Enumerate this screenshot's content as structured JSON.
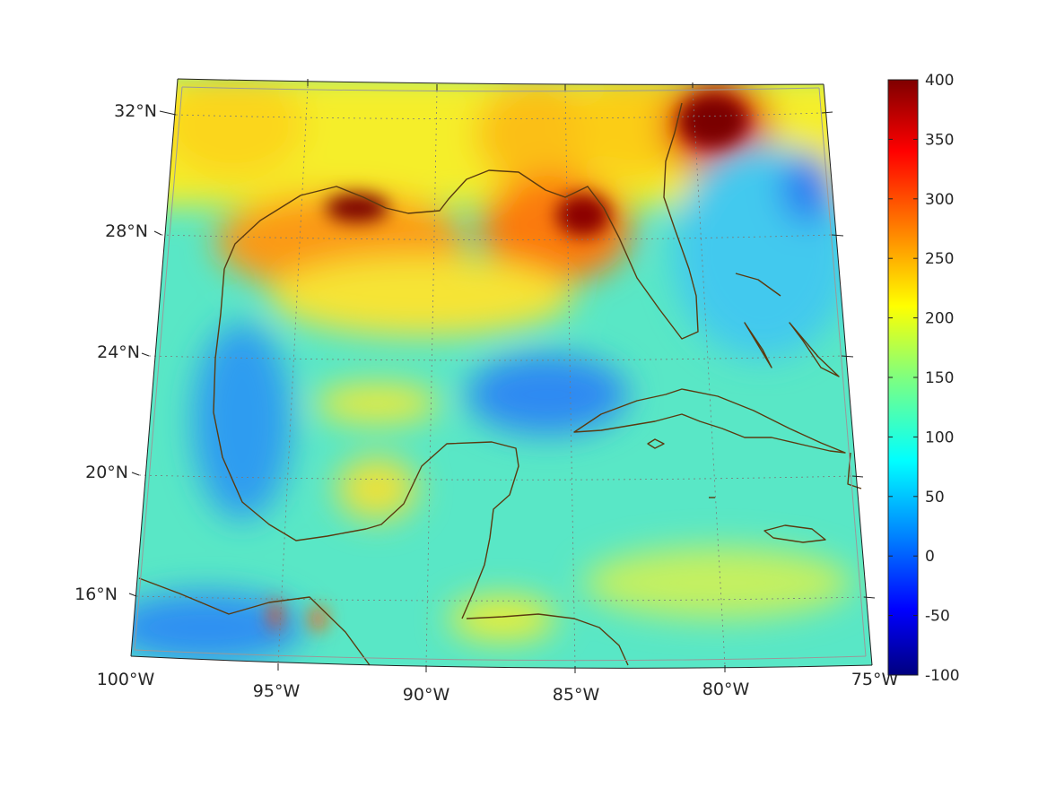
{
  "map": {
    "lon_labels": [
      "100°W",
      "95°W",
      "90°W",
      "85°W",
      "80°W",
      "75°W"
    ],
    "lat_labels": [
      "16°N",
      "20°N",
      "24°N",
      "28°N",
      "32°N"
    ],
    "lon_range": [
      -100,
      -75
    ],
    "lat_range": [
      14,
      33
    ],
    "coastline_color": "#5a3a10",
    "grid_color": "#7a7a7a",
    "grid_style": "dotted"
  },
  "colorbar": {
    "min": -100,
    "max": 400,
    "tick_labels": [
      "400",
      "350",
      "300",
      "250",
      "200",
      "150",
      "100",
      "50",
      "0",
      "-50",
      "-100"
    ],
    "colormap": "jet",
    "colors": [
      "#00007f",
      "#0000ff",
      "#007fff",
      "#00ffff",
      "#7fff7f",
      "#ffff00",
      "#ff7f00",
      "#ff0000",
      "#7f0000"
    ]
  }
}
